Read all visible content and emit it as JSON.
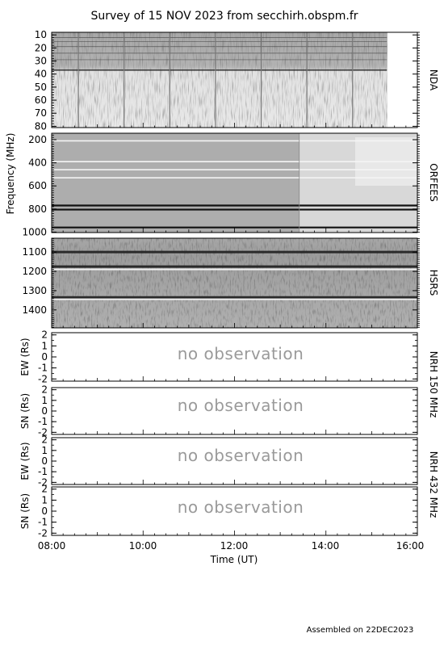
{
  "chart_data": {
    "type": "heatmap",
    "title": "Survey of 15 NOV 2023 from secchirh.obspm.fr",
    "shared_ylabel": "Frequency (MHz)",
    "xlabel": "Time (UT)",
    "x_tick_labels": [
      "08:00",
      "10:00",
      "12:00",
      "14:00",
      "16:00"
    ],
    "xlim": [
      "08:00",
      "16:00"
    ],
    "footer": "Assembled on  22DEC2023",
    "spectrograms": [
      {
        "instrument": "NDA",
        "ylim": [
          8,
          81
        ],
        "y_ticks": [
          10,
          20,
          30,
          40,
          50,
          60,
          70,
          80
        ],
        "data_end": "15:20",
        "vertical_lines": [
          "08:35",
          "09:35",
          "10:35",
          "11:35",
          "12:35",
          "13:35",
          "14:35"
        ]
      },
      {
        "instrument": "ORFEES",
        "ylim": [
          144,
          1004
        ],
        "y_ticks": [
          200,
          400,
          600,
          800,
          1000
        ],
        "bright_lines": [
          210,
          390,
          460,
          530
        ],
        "dark_lines": [
          770,
          805,
          960
        ],
        "change_time": "13:25"
      },
      {
        "instrument": "HSRS",
        "ylim": [
          1028,
          1493
        ],
        "y_ticks": [
          1100,
          1200,
          1300,
          1400
        ],
        "dark_lines": [
          1100,
          1175,
          1335
        ],
        "bright_lines": [
          1190,
          1345
        ]
      }
    ],
    "nrh_panels": [
      {
        "ylabel": "EW (Rs)",
        "ylim": [
          -2.2,
          2.2
        ],
        "y_ticks": [
          -2,
          -1,
          0,
          1,
          2
        ],
        "status": "no observation"
      },
      {
        "ylabel": "SN (Rs)",
        "ylim": [
          -2.2,
          2.2
        ],
        "y_ticks": [
          -2,
          -1,
          0,
          1,
          2
        ],
        "status": "no observation"
      },
      {
        "ylabel": "EW (Rs)",
        "ylim": [
          -2.2,
          2.2
        ],
        "y_ticks": [
          -2,
          -1,
          0,
          1,
          2
        ],
        "status": "no observation"
      },
      {
        "ylabel": "SN (Rs)",
        "ylim": [
          -2.2,
          2.2
        ],
        "y_ticks": [
          -2,
          -1,
          0,
          1,
          2
        ],
        "status": "no observation"
      }
    ],
    "nrh_group_labels": [
      "NRH 150 MHz",
      "NRH 432 MHz"
    ]
  }
}
